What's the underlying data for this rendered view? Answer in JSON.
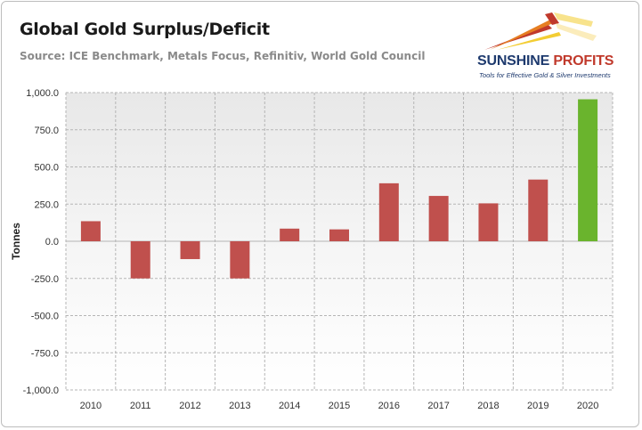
{
  "chart_data": {
    "type": "bar",
    "title": "Global Gold Surplus/Deficit",
    "subtitle": "Source: ICE Benchmark, Metals Focus, Refinitiv, World Gold Council",
    "xlabel": "",
    "ylabel": "Tonnes",
    "categories": [
      "2010",
      "2011",
      "2012",
      "2013",
      "2014",
      "2015",
      "2016",
      "2017",
      "2018",
      "2019",
      "2020"
    ],
    "values": [
      135,
      -250,
      -120,
      -250,
      85,
      80,
      390,
      305,
      255,
      415,
      955
    ],
    "colors": [
      "#c0504d",
      "#c0504d",
      "#c0504d",
      "#c0504d",
      "#c0504d",
      "#c0504d",
      "#c0504d",
      "#c0504d",
      "#c0504d",
      "#c0504d",
      "#6ab42d"
    ],
    "ylim": [
      -1000,
      1000
    ],
    "yticks": [
      1000,
      750,
      500,
      250,
      0,
      -250,
      -500,
      -750,
      -1000
    ],
    "ytick_labels": [
      "1,000.0",
      "750.0",
      "500.0",
      "250.0",
      "0.0",
      "-250.0",
      "-500.0",
      "-750.0",
      "-1,000.0"
    ],
    "grid": true,
    "legend": "none"
  },
  "logo": {
    "name_part1": "SUNSHINE",
    "name_part2": " PROFITS",
    "tagline": "Tools for Effective Gold & Silver Investments"
  }
}
